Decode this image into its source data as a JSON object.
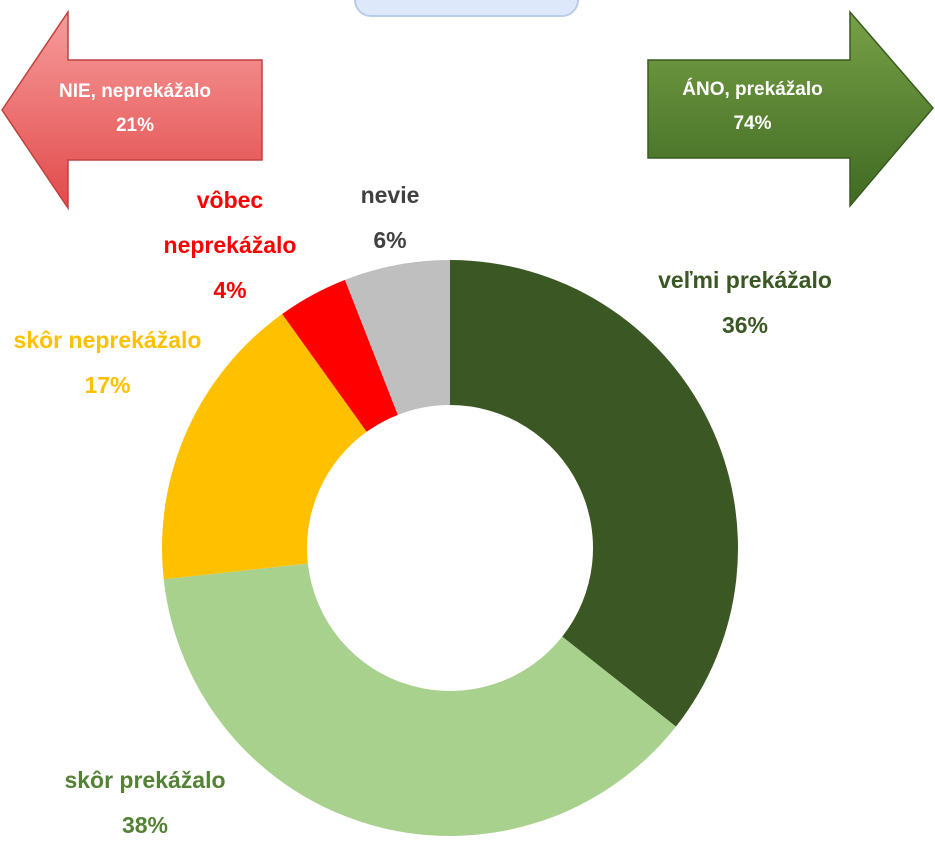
{
  "chart_data": {
    "type": "donut",
    "categories": [
      "veľmi prekážalo",
      "skôr prekážalo",
      "skôr neprekážalo",
      "vôbec neprekážalo",
      "nevie"
    ],
    "values": [
      36,
      38,
      17,
      4,
      6
    ],
    "value_labels": [
      "36%",
      "38%",
      "17%",
      "4%",
      "6%"
    ],
    "colors": [
      "#3a5724",
      "#a9d18e",
      "#ffc000",
      "#ff0000",
      "#bfbfbf"
    ],
    "label_colors": [
      "#3a5724",
      "#548235",
      "#ffc000",
      "#ff0000",
      "#404040"
    ],
    "annotations": [
      {
        "text": "NIE, neprekážalo",
        "value": "21%"
      },
      {
        "text": "ÁNO, prekážalo",
        "value": "74%"
      }
    ]
  }
}
